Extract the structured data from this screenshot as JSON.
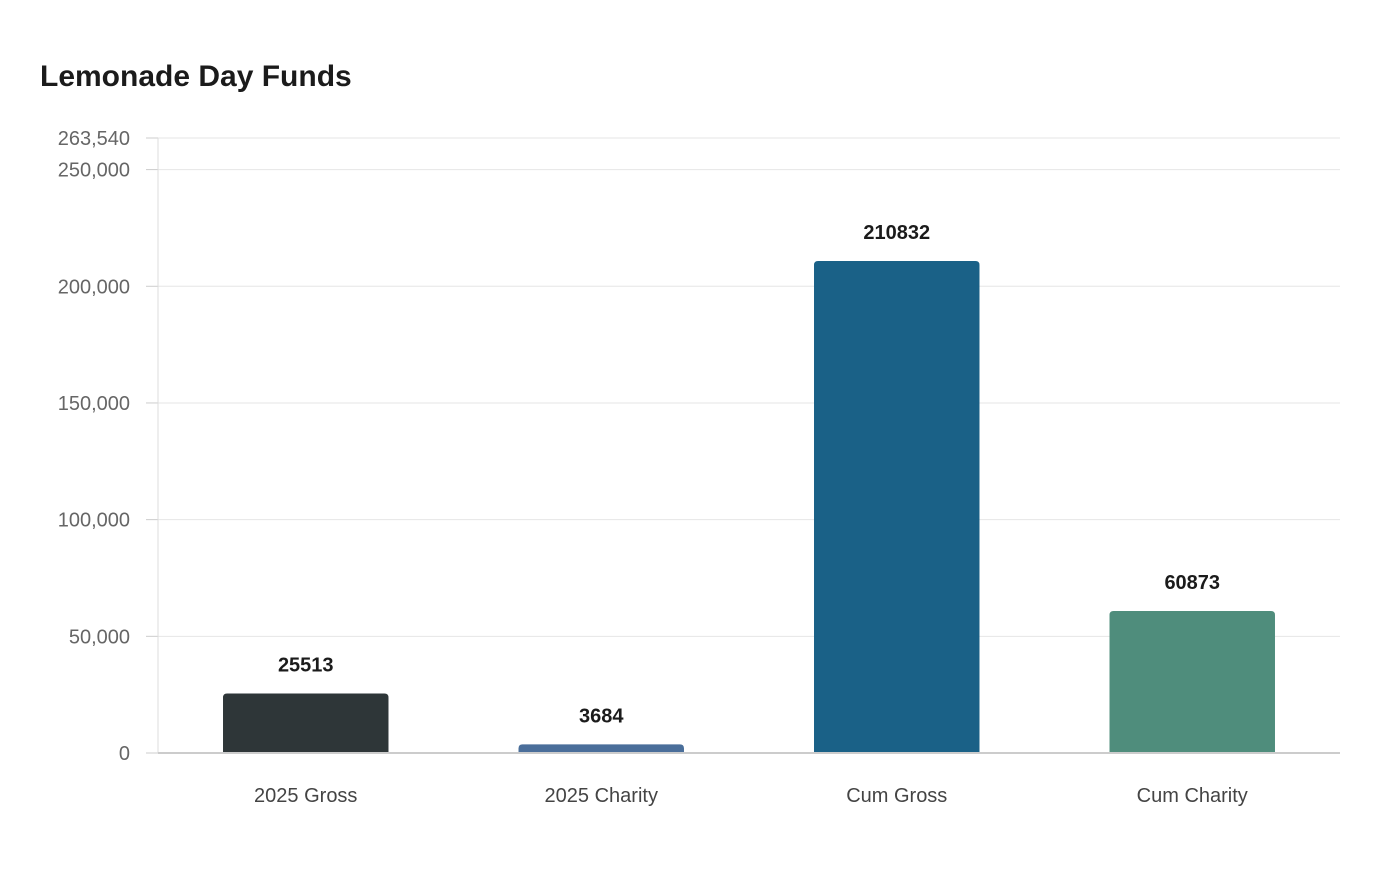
{
  "chart_data": {
    "type": "bar",
    "title": "Lemonade Day Funds",
    "xlabel": "",
    "ylabel": "",
    "categories": [
      "2025 Gross",
      "2025 Charity",
      "Cum Gross",
      "Cum Charity"
    ],
    "values": [
      25513,
      3684,
      210832,
      60873
    ],
    "data_labels": [
      "25513",
      "3684",
      "210832",
      "60873"
    ],
    "colors": [
      "#2e3638",
      "#4a6e9a",
      "#1a6187",
      "#4f8d7c"
    ],
    "ylim": [
      0,
      263540
    ],
    "yticks": [
      0,
      50000,
      100000,
      150000,
      200000,
      250000,
      263540
    ],
    "ytick_labels": [
      "0",
      "50,000",
      "100,000",
      "150,000",
      "200,000",
      "250,000",
      "263,540"
    ],
    "grid": true,
    "legend": "none"
  }
}
